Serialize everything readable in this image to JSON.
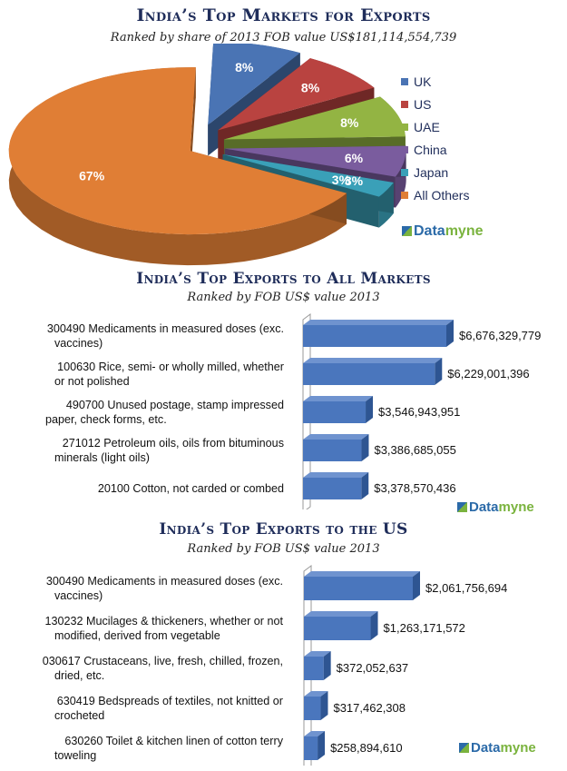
{
  "brand": {
    "part1": "Data",
    "part2": "myne"
  },
  "chart_data": [
    {
      "type": "pie",
      "title": "India’s Top Markets for Exports",
      "subtitle": "Ranked by share of 2013 FOB value US$181,114,554,739",
      "legend_position": "right",
      "slices": [
        {
          "name": "UK",
          "value": 8,
          "label": "8%",
          "color": "#4a74b4"
        },
        {
          "name": "US",
          "value": 8,
          "label": "8%",
          "color": "#b94340"
        },
        {
          "name": "UAE",
          "value": 8,
          "label": "8%",
          "color": "#93b443"
        },
        {
          "name": "China",
          "value": 6,
          "label": "6%",
          "color": "#7a5c9e"
        },
        {
          "name": "Japan",
          "value": 3,
          "label": "3%",
          "color": "#3aa0b8"
        },
        {
          "name": "All Others",
          "value": 67,
          "label": "67%",
          "color": "#e07e35"
        }
      ],
      "extra_labels": [
        {
          "value": "3%"
        }
      ]
    },
    {
      "type": "bar",
      "orientation": "horizontal",
      "title": "India’s Top Exports to All Markets",
      "subtitle": "Ranked by FOB US$ value 2013",
      "categories": [
        [
          "300490  Medicaments in measured doses (exc.",
          "vaccines)"
        ],
        [
          "100630  Rice, semi- or wholly milled, whether",
          "or not polished"
        ],
        [
          "490700  Unused postage, stamp impressed",
          "paper, check forms, etc."
        ],
        [
          "271012  Petroleum oils, oils from bituminous",
          "minerals (light oils)"
        ],
        [
          "20100  Cotton, not carded or combed"
        ]
      ],
      "values": [
        6676329779,
        6229001396,
        3546943951,
        3386685055,
        3378570436
      ],
      "value_labels": [
        "$6,676,329,779",
        "$6,229,001,396",
        "$3,546,943,951",
        "$3,386,685,055",
        "$3,378,570,436"
      ],
      "xlim": [
        1400000000,
        6676329779
      ]
    },
    {
      "type": "bar",
      "orientation": "horizontal",
      "title": "India’s Top Exports to the US",
      "subtitle": "Ranked by FOB US$ value 2013",
      "categories": [
        [
          "300490  Medicaments in measured doses (exc.",
          "vaccines)"
        ],
        [
          "130232  Mucilages & thickeners, whether or not",
          "modified, derived from vegetable"
        ],
        [
          "030617 Crustaceans, live, fresh, chilled, frozen,",
          "dried, etc."
        ],
        [
          "630419  Bedspreads of textiles, not knitted or",
          "crocheted"
        ],
        [
          "630260  Toilet & kitchen linen of cotton terry",
          "toweling"
        ]
      ],
      "values": [
        2061756694,
        1263171572,
        372052637,
        317462308,
        258894610
      ],
      "value_labels": [
        "$2,061,756,694",
        "$1,263,171,572",
        "$372,052,637",
        "$317,462,308",
        "$258,894,610"
      ],
      "xlim": [
        0,
        2061756694
      ]
    }
  ]
}
